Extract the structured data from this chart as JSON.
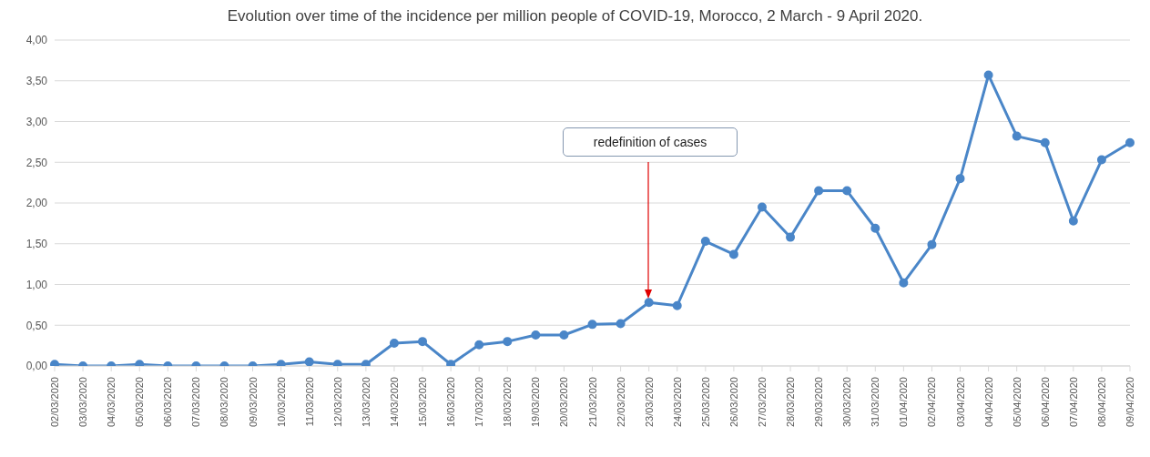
{
  "chart_data": {
    "type": "line",
    "title": "Evolution over time of the incidence per million people of COVID-19, Morocco, 2 March - 9 April 2020.",
    "categories": [
      "02/03/2020",
      "03/03/2020",
      "04/03/2020",
      "05/03/2020",
      "06/03/2020",
      "07/03/2020",
      "08/03/2020",
      "09/03/2020",
      "10/03/2020",
      "11/03/2020",
      "12/03/2020",
      "13/03/2020",
      "14/03/2020",
      "15/03/2020",
      "16/03/2020",
      "17/03/2020",
      "18/03/2020",
      "19/03/2020",
      "20/03/2020",
      "21/03/2020",
      "22/03/2020",
      "23/03/2020",
      "24/03/2020",
      "25/03/2020",
      "26/03/2020",
      "27/03/2020",
      "28/03/2020",
      "29/03/2020",
      "30/03/2020",
      "31/03/2020",
      "01/04/2020",
      "02/04/2020",
      "03/04/2020",
      "04/04/2020",
      "05/04/2020",
      "06/04/2020",
      "07/04/2020",
      "08/04/2020",
      "09/04/2020"
    ],
    "series": [
      {
        "color": "#4a86c8",
        "values": [
          0.02,
          0,
          0,
          0.02,
          0,
          0,
          0,
          0,
          0.02,
          0.05,
          0.02,
          0.02,
          0.28,
          0.3,
          0.02,
          0.26,
          0.3,
          0.38,
          0.38,
          0.51,
          0.52,
          0.78,
          0.74,
          1.53,
          1.37,
          1.95,
          1.58,
          2.15,
          2.15,
          1.69,
          1.02,
          1.49,
          2.3,
          3.57,
          2.82,
          2.74,
          1.78,
          2.53,
          2.74
        ]
      }
    ],
    "ylim": [
      0,
      4
    ],
    "yticks": [
      {
        "value": 0,
        "label": "0,00"
      },
      {
        "value": 0.5,
        "label": "0,50"
      },
      {
        "value": 1,
        "label": "1,00"
      },
      {
        "value": 1.5,
        "label": "1,50"
      },
      {
        "value": 2,
        "label": "2,00"
      },
      {
        "value": 2.5,
        "label": "2,50"
      },
      {
        "value": 3,
        "label": "3,00"
      },
      {
        "value": 3.5,
        "label": "3,50"
      },
      {
        "value": 4,
        "label": "4,00"
      }
    ],
    "grid": "y",
    "marker": "circle",
    "line_style": "solid",
    "annotations": [
      "redefinition of cases"
    ]
  }
}
